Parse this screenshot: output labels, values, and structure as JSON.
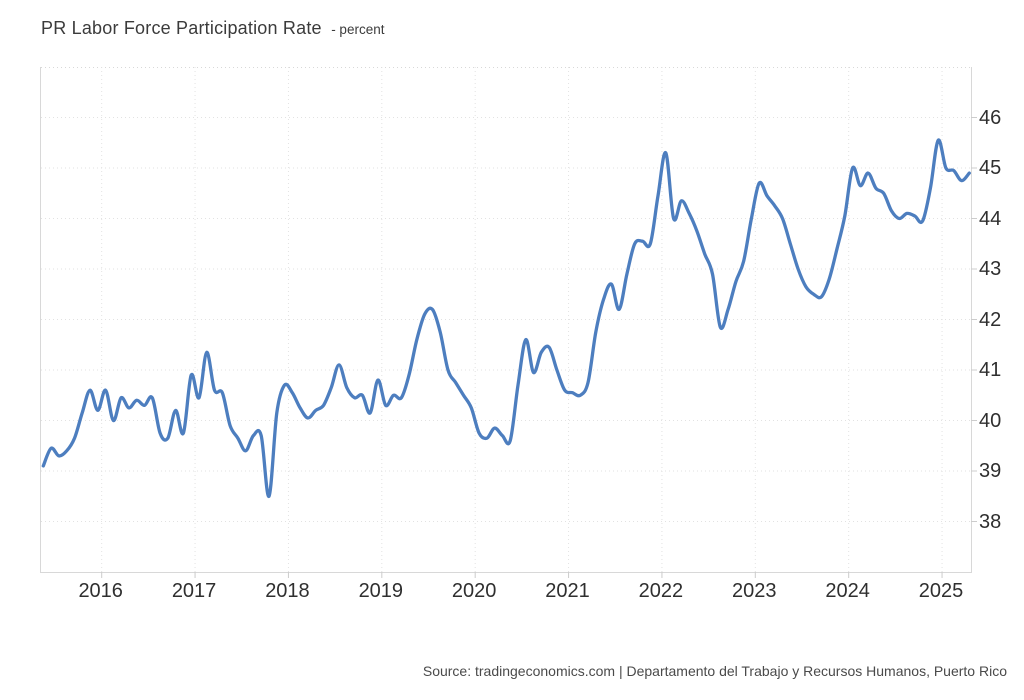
{
  "header": {
    "title": "PR Labor Force Participation Rate",
    "unit_suffix": "- percent"
  },
  "footer": {
    "source": "Source: tradingeconomics.com | Departamento del Trabajo y Recursos Humanos, Puerto Rico"
  },
  "colors": {
    "line": "#4d7ebf",
    "grid": "#e2e2e2",
    "plot_border": "#d8d8d8",
    "tick_mark": "#cccccc",
    "axis_text": "#2f2f2f",
    "title_text": "#3b3b3b",
    "source_text": "#4a4a4a",
    "background": "#ffffff"
  },
  "chart_data": {
    "type": "line",
    "title": "PR Labor Force Participation Rate",
    "ylabel": "percent",
    "xlabel": "",
    "grid": true,
    "legend": "none",
    "y_axis_side": "right",
    "ylim": [
      37,
      47
    ],
    "xlim_years": [
      2015.35,
      2025.31
    ],
    "y_ticks": [
      46,
      45,
      44,
      43,
      42,
      41,
      40,
      39,
      38
    ],
    "x_ticks": [
      2016,
      2017,
      2018,
      2019,
      2020,
      2021,
      2022,
      2023,
      2024,
      2025
    ],
    "series": [
      {
        "name": "PR Labor Force Participation Rate (percent)",
        "data": [
          [
            "2015-05",
            39.1
          ],
          [
            "2015-06",
            39.45
          ],
          [
            "2015-07",
            39.3
          ],
          [
            "2015-08",
            39.4
          ],
          [
            "2015-09",
            39.65
          ],
          [
            "2015-10",
            40.15
          ],
          [
            "2015-11",
            40.6
          ],
          [
            "2015-12",
            40.2
          ],
          [
            "2016-01",
            40.6
          ],
          [
            "2016-02",
            40.0
          ],
          [
            "2016-03",
            40.45
          ],
          [
            "2016-04",
            40.25
          ],
          [
            "2016-05",
            40.4
          ],
          [
            "2016-06",
            40.3
          ],
          [
            "2016-07",
            40.45
          ],
          [
            "2016-08",
            39.75
          ],
          [
            "2016-09",
            39.65
          ],
          [
            "2016-10",
            40.2
          ],
          [
            "2016-11",
            39.75
          ],
          [
            "2016-12",
            40.9
          ],
          [
            "2017-01",
            40.45
          ],
          [
            "2017-02",
            41.35
          ],
          [
            "2017-03",
            40.6
          ],
          [
            "2017-04",
            40.55
          ],
          [
            "2017-05",
            39.9
          ],
          [
            "2017-06",
            39.65
          ],
          [
            "2017-07",
            39.4
          ],
          [
            "2017-08",
            39.7
          ],
          [
            "2017-09",
            39.7
          ],
          [
            "2017-10",
            38.5
          ],
          [
            "2017-11",
            40.15
          ],
          [
            "2017-12",
            40.7
          ],
          [
            "2018-01",
            40.55
          ],
          [
            "2018-02",
            40.25
          ],
          [
            "2018-03",
            40.05
          ],
          [
            "2018-04",
            40.2
          ],
          [
            "2018-05",
            40.3
          ],
          [
            "2018-06",
            40.65
          ],
          [
            "2018-07",
            41.1
          ],
          [
            "2018-08",
            40.65
          ],
          [
            "2018-09",
            40.45
          ],
          [
            "2018-10",
            40.5
          ],
          [
            "2018-11",
            40.15
          ],
          [
            "2018-12",
            40.8
          ],
          [
            "2019-01",
            40.3
          ],
          [
            "2019-02",
            40.5
          ],
          [
            "2019-03",
            40.45
          ],
          [
            "2019-04",
            40.9
          ],
          [
            "2019-05",
            41.6
          ],
          [
            "2019-06",
            42.1
          ],
          [
            "2019-07",
            42.2
          ],
          [
            "2019-08",
            41.75
          ],
          [
            "2019-09",
            41.0
          ],
          [
            "2019-10",
            40.75
          ],
          [
            "2019-11",
            40.5
          ],
          [
            "2019-12",
            40.25
          ],
          [
            "2020-01",
            39.75
          ],
          [
            "2020-02",
            39.65
          ],
          [
            "2020-03",
            39.85
          ],
          [
            "2020-04",
            39.7
          ],
          [
            "2020-05",
            39.6
          ],
          [
            "2020-06",
            40.7
          ],
          [
            "2020-07",
            41.6
          ],
          [
            "2020-08",
            40.95
          ],
          [
            "2020-09",
            41.35
          ],
          [
            "2020-10",
            41.45
          ],
          [
            "2020-11",
            41.0
          ],
          [
            "2020-12",
            40.6
          ],
          [
            "2021-01",
            40.55
          ],
          [
            "2021-02",
            40.5
          ],
          [
            "2021-03",
            40.75
          ],
          [
            "2021-04",
            41.75
          ],
          [
            "2021-05",
            42.4
          ],
          [
            "2021-06",
            42.7
          ],
          [
            "2021-07",
            42.2
          ],
          [
            "2021-08",
            42.9
          ],
          [
            "2021-09",
            43.5
          ],
          [
            "2021-10",
            43.55
          ],
          [
            "2021-11",
            43.5
          ],
          [
            "2021-12",
            44.45
          ],
          [
            "2022-01",
            45.3
          ],
          [
            "2022-02",
            44.0
          ],
          [
            "2022-03",
            44.35
          ],
          [
            "2022-04",
            44.1
          ],
          [
            "2022-05",
            43.75
          ],
          [
            "2022-06",
            43.3
          ],
          [
            "2022-07",
            42.9
          ],
          [
            "2022-08",
            41.85
          ],
          [
            "2022-09",
            42.2
          ],
          [
            "2022-10",
            42.75
          ],
          [
            "2022-11",
            43.15
          ],
          [
            "2022-12",
            44.0
          ],
          [
            "2023-01",
            44.7
          ],
          [
            "2023-02",
            44.45
          ],
          [
            "2023-03",
            44.25
          ],
          [
            "2023-04",
            44.0
          ],
          [
            "2023-05",
            43.5
          ],
          [
            "2023-06",
            43.0
          ],
          [
            "2023-07",
            42.65
          ],
          [
            "2023-08",
            42.5
          ],
          [
            "2023-09",
            42.45
          ],
          [
            "2023-10",
            42.8
          ],
          [
            "2023-11",
            43.4
          ],
          [
            "2023-12",
            44.05
          ],
          [
            "2024-01",
            45.0
          ],
          [
            "2024-02",
            44.65
          ],
          [
            "2024-03",
            44.9
          ],
          [
            "2024-04",
            44.6
          ],
          [
            "2024-05",
            44.5
          ],
          [
            "2024-06",
            44.15
          ],
          [
            "2024-07",
            44.0
          ],
          [
            "2024-08",
            44.1
          ],
          [
            "2024-09",
            44.05
          ],
          [
            "2024-10",
            43.95
          ],
          [
            "2024-11",
            44.6
          ],
          [
            "2024-12",
            45.55
          ],
          [
            "2025-01",
            45.0
          ],
          [
            "2025-02",
            44.95
          ],
          [
            "2025-03",
            44.75
          ],
          [
            "2025-04",
            44.9
          ]
        ]
      }
    ]
  }
}
